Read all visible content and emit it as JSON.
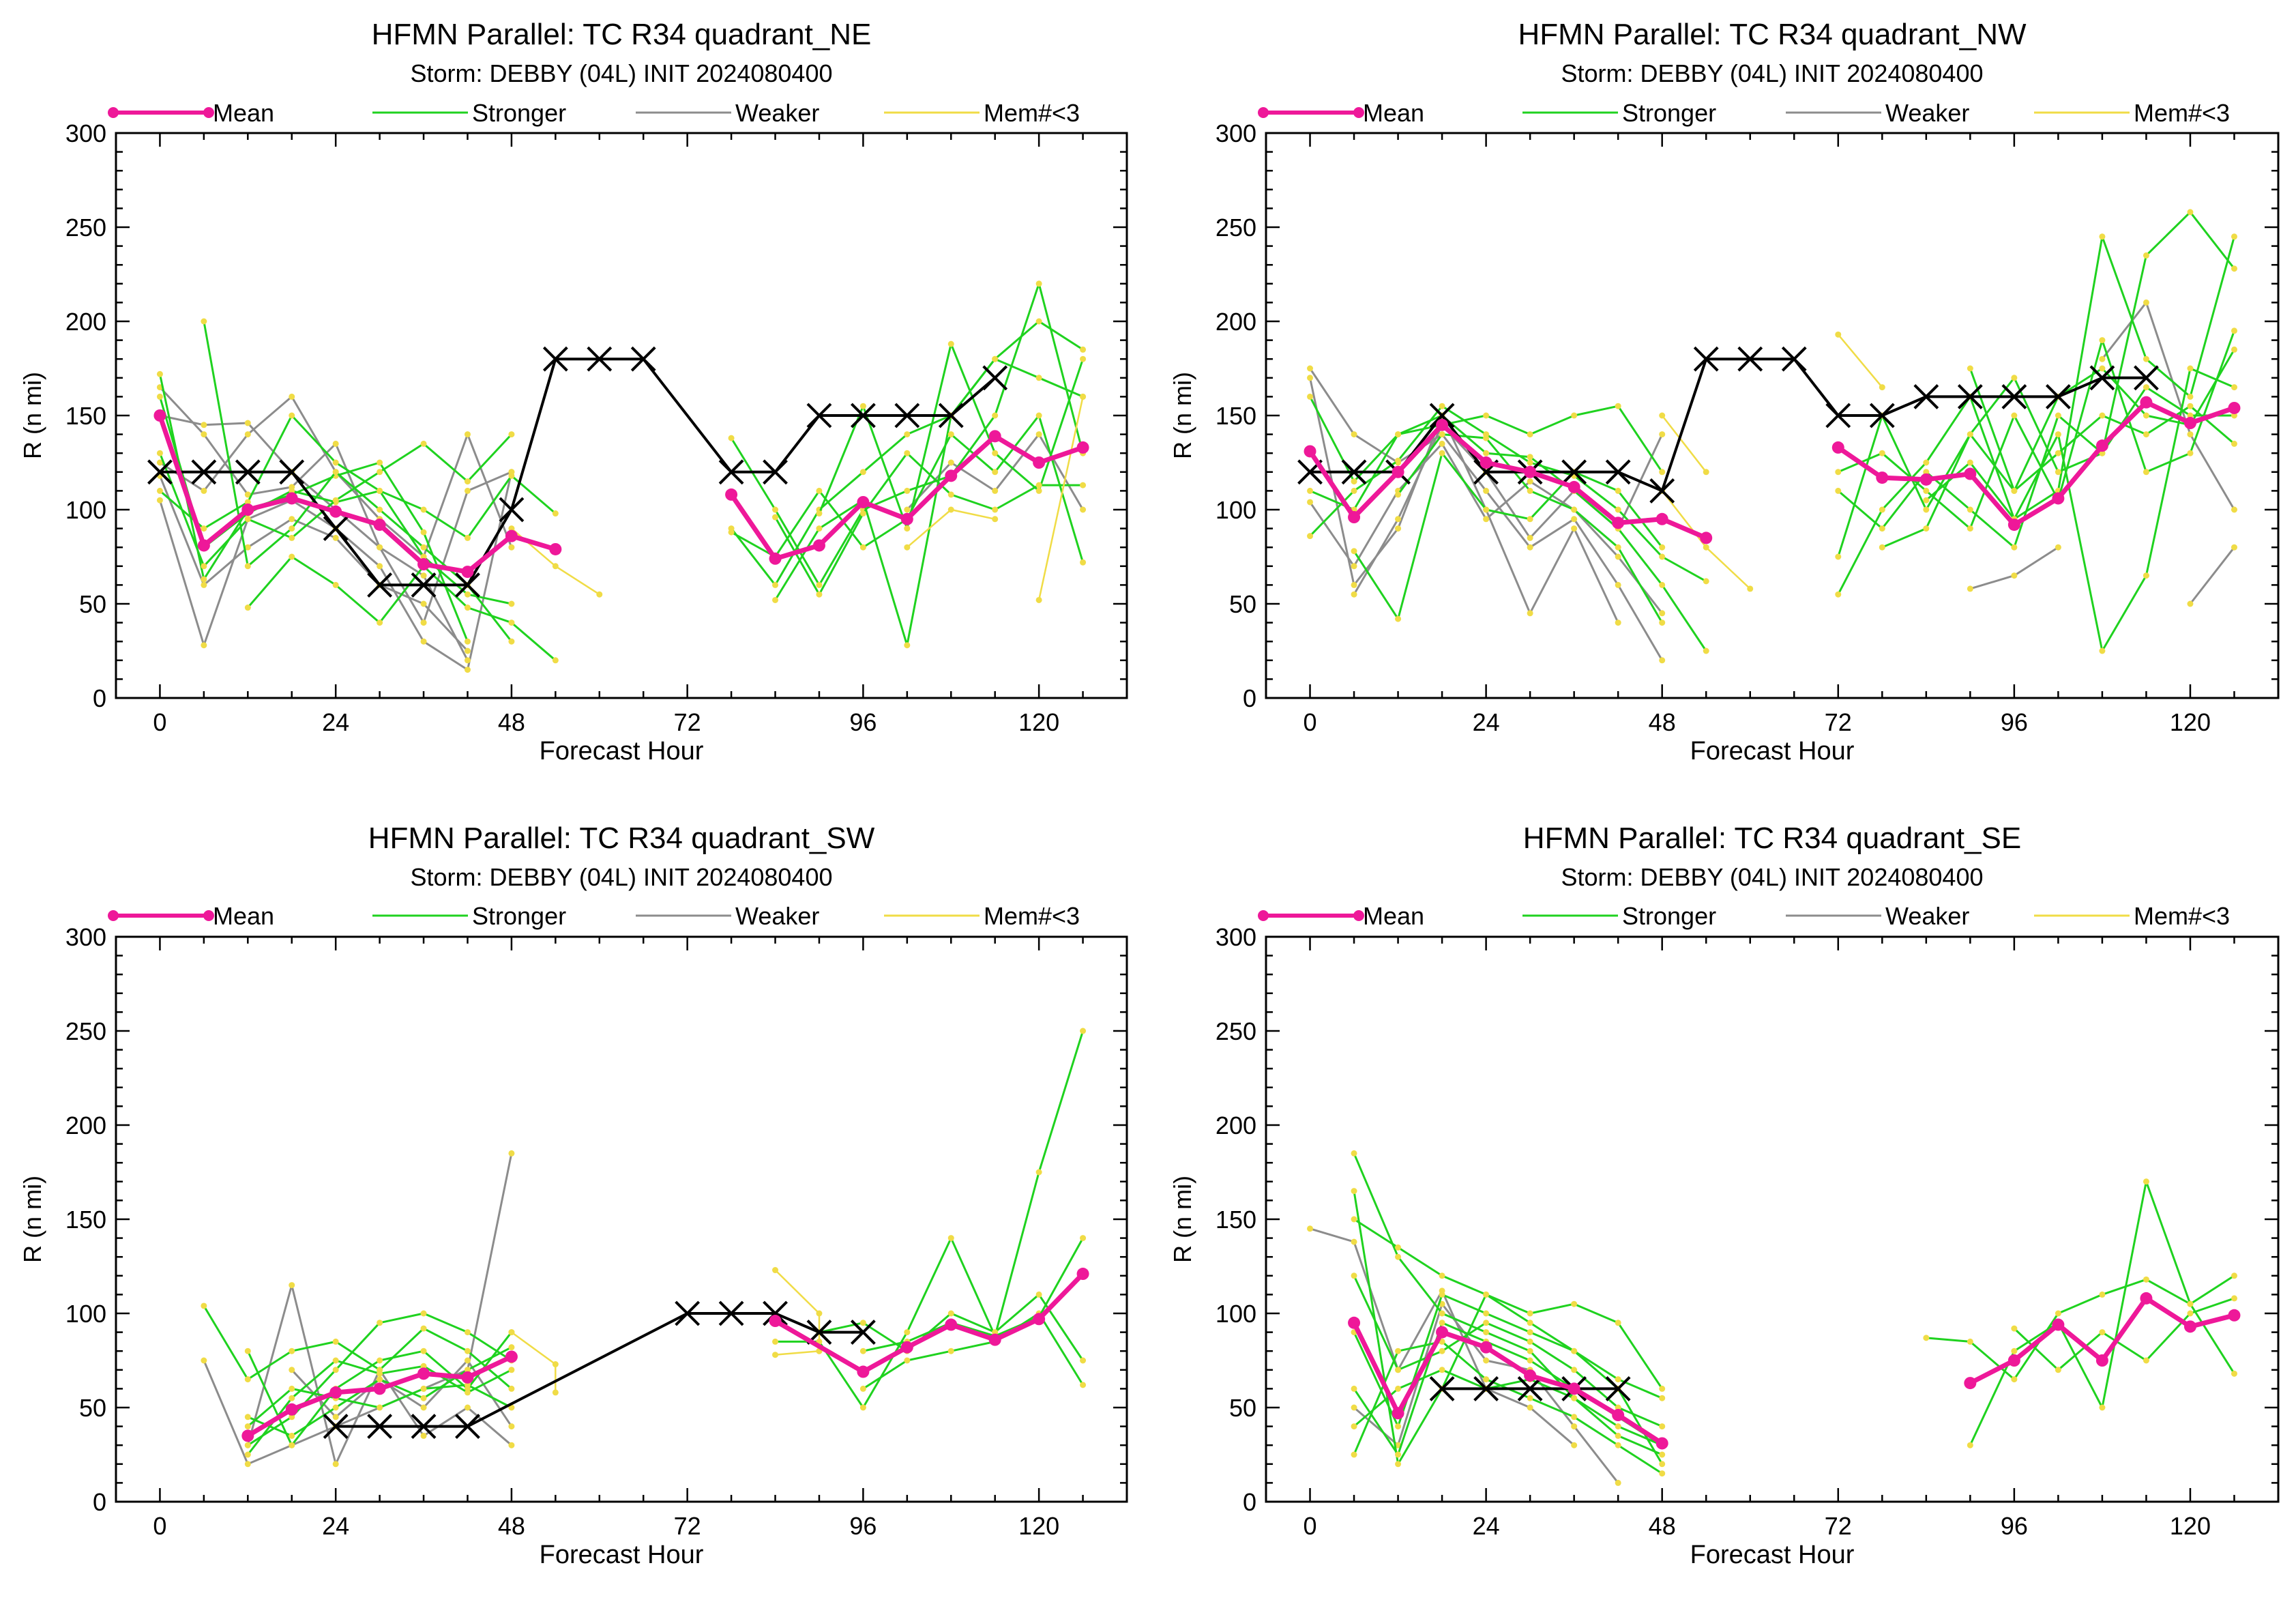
{
  "legend_labels": {
    "mean": "Mean",
    "stronger": "Stronger",
    "weaker": "Weaker",
    "few": "Mem#<3"
  },
  "colors": {
    "mean": "#ee1899",
    "stronger": "#1fd21f",
    "weaker": "#8c8c8c",
    "few": "#f0dc46",
    "best_track": "#000000"
  },
  "chart_data": [
    {
      "type": "line",
      "title": "HFMN Parallel: TC  R34 quadrant_NE",
      "subtitle": "Storm: DEBBY (04L) INIT 2024080400",
      "xlabel": "Forecast Hour",
      "ylabel": "R (n mi)",
      "xlim": [
        -6,
        132
      ],
      "ylim": [
        0,
        300
      ],
      "xticks": [
        0,
        24,
        48,
        72,
        96,
        120
      ],
      "yticks": [
        0,
        50,
        100,
        150,
        200,
        250,
        300
      ],
      "series": [
        {
          "name": "Mean",
          "x": [
            0,
            6,
            12,
            18,
            24,
            30,
            36,
            42,
            48,
            54
          ],
          "y": [
            150,
            81,
            100,
            106,
            99,
            92,
            71,
            67,
            86,
            79
          ]
        },
        {
          "x": [
            78,
            84,
            90,
            96,
            102,
            108,
            114,
            120,
            126
          ],
          "y": [
            108,
            74,
            81,
            104,
            95,
            118,
            139,
            125,
            133
          ]
        },
        {
          "x": [
            0,
            6,
            12,
            18,
            24,
            30,
            36,
            42,
            48,
            54,
            60,
            66,
            78,
            84,
            90,
            96,
            102,
            108,
            114
          ],
          "y": [
            120,
            120,
            120,
            120,
            90,
            60,
            60,
            60,
            100,
            180,
            180,
            180,
            120,
            120,
            150,
            150,
            150,
            150,
            170
          ]
        }
      ]
    },
    {
      "type": "line",
      "title": "HFMN Parallel: TC  R34 quadrant_NW",
      "subtitle": "Storm: DEBBY (04L) INIT 2024080400",
      "xlabel": "Forecast Hour",
      "ylabel": "R (n mi)",
      "xlim": [
        -6,
        132
      ],
      "ylim": [
        0,
        300
      ],
      "xticks": [
        0,
        24,
        48,
        72,
        96,
        120
      ],
      "yticks": [
        0,
        50,
        100,
        150,
        200,
        250,
        300
      ],
      "series": [
        {
          "name": "Mean",
          "x": [
            0,
            6,
            12,
            18,
            24,
            30,
            36,
            42,
            48,
            54
          ],
          "y": [
            131,
            96,
            120,
            145,
            125,
            120,
            112,
            93,
            95,
            85
          ]
        },
        {
          "x": [
            72,
            78,
            84,
            90,
            96,
            102,
            108,
            114,
            120,
            126
          ],
          "y": [
            133,
            117,
            116,
            119,
            92,
            106,
            134,
            157,
            146,
            154
          ]
        },
        {
          "x": [
            0,
            6,
            12,
            18,
            24,
            30,
            36,
            42,
            48,
            54,
            60,
            66,
            72,
            78,
            84,
            90,
            96,
            102,
            108,
            114
          ],
          "y": [
            120,
            120,
            120,
            150,
            120,
            120,
            120,
            120,
            110,
            180,
            180,
            180,
            150,
            150,
            160,
            160,
            160,
            160,
            170,
            170
          ]
        }
      ]
    },
    {
      "type": "line",
      "title": "HFMN Parallel: TC  R34 quadrant_SW",
      "subtitle": "Storm: DEBBY (04L) INIT 2024080400",
      "xlabel": "Forecast Hour",
      "ylabel": "R (n mi)",
      "xlim": [
        -6,
        132
      ],
      "ylim": [
        0,
        300
      ],
      "xticks": [
        0,
        24,
        48,
        72,
        96,
        120
      ],
      "yticks": [
        0,
        50,
        100,
        150,
        200,
        250,
        300
      ],
      "series": [
        {
          "name": "Mean",
          "x": [
            12,
            18,
            24,
            30,
            36,
            42,
            48
          ],
          "y": [
            35,
            49,
            58,
            60,
            68,
            66,
            77
          ]
        },
        {
          "x": [
            84,
            96,
            102,
            108,
            114,
            120,
            126
          ],
          "y": [
            96,
            69,
            82,
            94,
            86,
            97,
            121
          ]
        },
        {
          "x": [
            24,
            30,
            36,
            42,
            72,
            78,
            84,
            90,
            96
          ],
          "y": [
            40,
            40,
            40,
            40,
            100,
            100,
            100,
            90,
            90
          ]
        }
      ]
    },
    {
      "type": "line",
      "title": "HFMN Parallel: TC  R34 quadrant_SE",
      "subtitle": "Storm: DEBBY (04L) INIT 2024080400",
      "xlabel": "Forecast Hour",
      "ylabel": "R (n mi)",
      "xlim": [
        -6,
        132
      ],
      "ylim": [
        0,
        300
      ],
      "xticks": [
        0,
        24,
        48,
        72,
        96,
        120
      ],
      "yticks": [
        0,
        50,
        100,
        150,
        200,
        250,
        300
      ],
      "series": [
        {
          "name": "Mean",
          "x": [
            6,
            12,
            18,
            24,
            30,
            36,
            42,
            48
          ],
          "y": [
            95,
            47,
            90,
            82,
            67,
            60,
            46,
            31
          ]
        },
        {
          "x": [
            90,
            96,
            102,
            108,
            114,
            120,
            126
          ],
          "y": [
            63,
            75,
            94,
            75,
            108,
            93,
            99
          ]
        },
        {
          "x": [
            18,
            24,
            30,
            36,
            42
          ],
          "y": [
            60,
            60,
            60,
            60,
            60
          ]
        }
      ]
    }
  ]
}
